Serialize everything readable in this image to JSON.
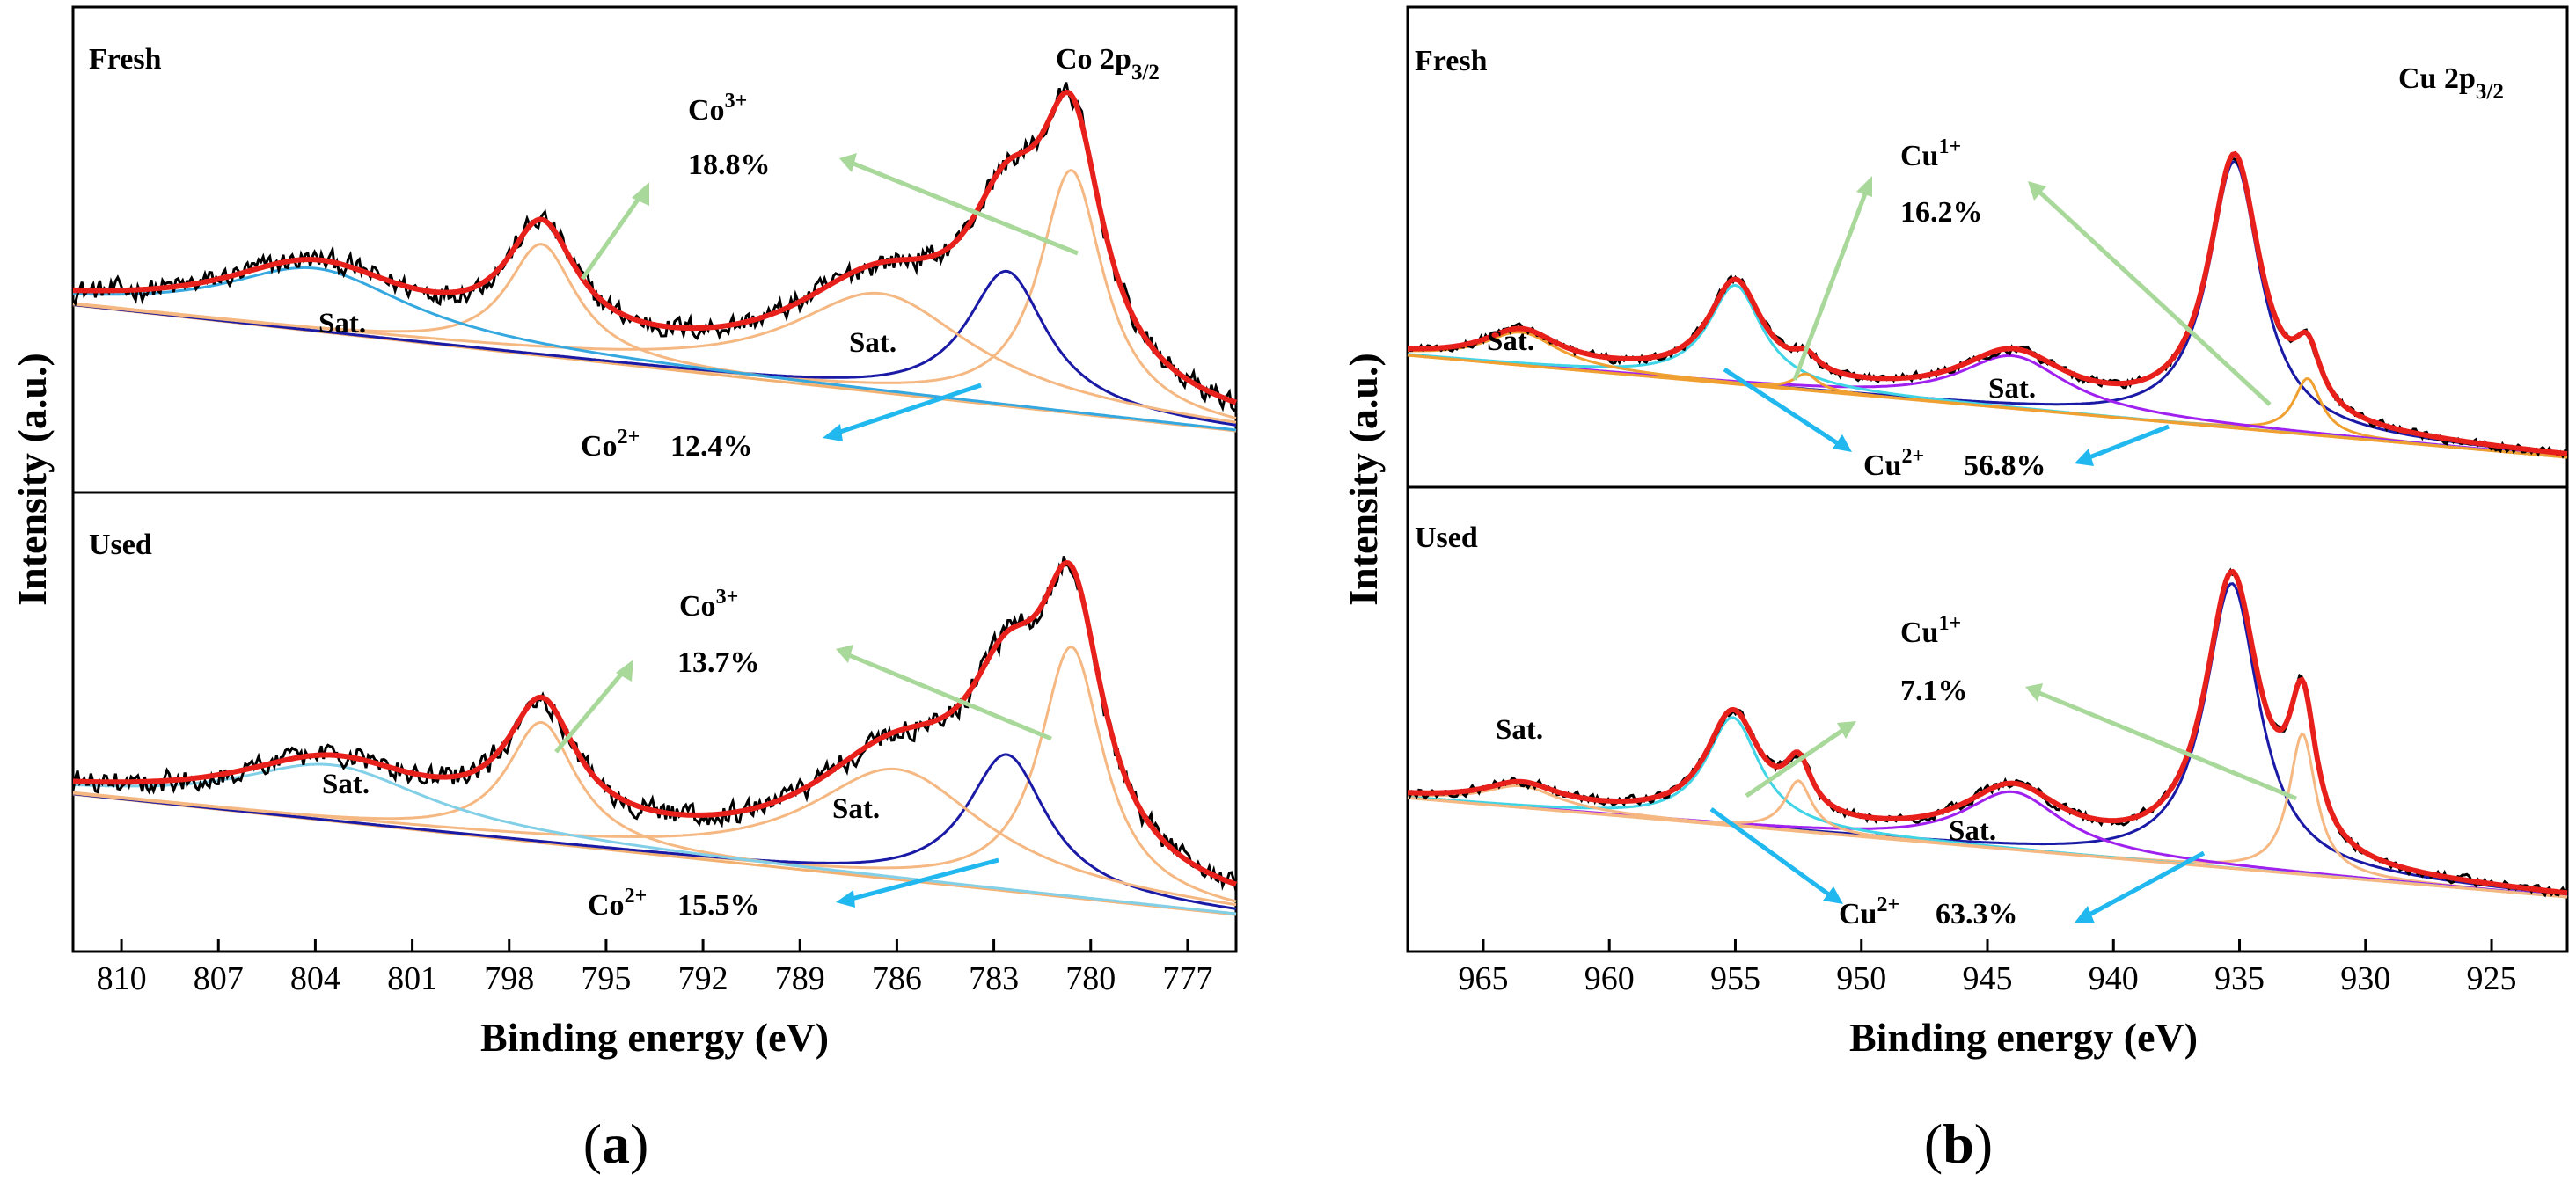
{
  "chart_data": [
    {
      "id": "a",
      "type": "line",
      "subfigure_label": "a",
      "xlabel": "Binding energy (eV)",
      "ylabel": "Intensity (a.u.)",
      "xlim": [
        811.5,
        775.5
      ],
      "xticks": [
        810,
        807,
        804,
        801,
        798,
        795,
        792,
        789,
        786,
        783,
        780,
        777
      ],
      "region": "Co 2p3/2",
      "region_main": "Co 2p",
      "region_sub": "3/2",
      "panels": [
        {
          "name": "Fresh",
          "label": "Fresh",
          "baseline": {
            "start": 0.7,
            "end": 0.0
          },
          "noise": 0.045,
          "components": [
            {
              "name": "Co3+",
              "center": 780.6,
              "width": 1.2,
              "height": 1.35,
              "color": "#f5b882"
            },
            {
              "name": "Co2+",
              "center": 782.6,
              "width": 1.5,
              "height": 0.75,
              "color": "#1a1aa6"
            },
            {
              "name": "Sat.",
              "center": 786.5,
              "width": 3.4,
              "height": 0.55,
              "color": "#f5b882"
            },
            {
              "name": "Co3+",
              "center": 797.0,
              "width": 1.3,
              "height": 0.62,
              "color": "#f5b882"
            },
            {
              "name": "Sat.",
              "center": 804.0,
              "width": 3.5,
              "height": 0.35,
              "color": "#35a8e0"
            }
          ],
          "annotations": [
            {
              "label": "Co",
              "sup": "3+",
              "value": "18.8%",
              "arrow_color": "#a8d89a"
            },
            {
              "label": "Co",
              "sup": "2+",
              "value": "12.4%",
              "arrow_color": "#20b8ef"
            }
          ],
          "sat_labels": [
            "Sat.",
            "Sat."
          ]
        },
        {
          "name": "Used",
          "label": "Used",
          "baseline": {
            "start": 0.6,
            "end": 0.0
          },
          "noise": 0.045,
          "components": [
            {
              "name": "Co3+",
              "center": 780.6,
              "width": 1.2,
              "height": 1.25,
              "color": "#f5b882"
            },
            {
              "name": "Co2+",
              "center": 782.6,
              "width": 1.5,
              "height": 0.68,
              "color": "#1a1aa6"
            },
            {
              "name": "Sat.",
              "center": 786.0,
              "width": 3.3,
              "height": 0.55,
              "color": "#f5b882"
            },
            {
              "name": "Co3+",
              "center": 797.0,
              "width": 1.3,
              "height": 0.6,
              "color": "#f5b882"
            },
            {
              "name": "Sat.",
              "center": 803.5,
              "width": 3.6,
              "height": 0.28,
              "color": "#82cfe8"
            }
          ],
          "annotations": [
            {
              "label": "Co",
              "sup": "3+",
              "value": "13.7%",
              "arrow_color": "#a8d89a"
            },
            {
              "label": "Co",
              "sup": "2+",
              "value": "15.5%",
              "arrow_color": "#20b8ef"
            }
          ],
          "sat_labels": [
            "Sat.",
            "Sat."
          ]
        }
      ]
    },
    {
      "id": "b",
      "type": "line",
      "subfigure_label": "b",
      "xlabel": "Binding energy (eV)",
      "ylabel": "Intensity (a.u.)",
      "xlim": [
        968,
        922
      ],
      "xticks": [
        965,
        960,
        955,
        950,
        945,
        940,
        935,
        930,
        925
      ],
      "region": "Cu 2p3/2",
      "region_main": "Cu 2p",
      "region_sub": "3/2",
      "panels": [
        {
          "name": "Fresh",
          "label": "Fresh",
          "baseline": {
            "start": 0.62,
            "end": 0.0
          },
          "noise": 0.02,
          "components": [
            {
              "name": "Cu2+",
              "center": 935.2,
              "width": 1.25,
              "height": 1.62,
              "color": "#1a1aa6"
            },
            {
              "name": "Cu1+",
              "center": 932.3,
              "width": 0.65,
              "height": 0.34,
              "color": "#f0a030"
            },
            {
              "name": "Sat.",
              "center": 944.0,
              "width": 2.6,
              "height": 0.32,
              "color": "#a020f0"
            },
            {
              "name": "Cu2+",
              "center": 955.0,
              "width": 1.3,
              "height": 0.6,
              "color": "#3fd4e6"
            },
            {
              "name": "Cu1+",
              "center": 952.2,
              "width": 0.6,
              "height": 0.1,
              "color": "#f0a030"
            },
            {
              "name": "Sat.",
              "center": 963.5,
              "width": 1.8,
              "height": 0.2,
              "color": "#f0a030"
            }
          ],
          "annotations": [
            {
              "label": "Cu",
              "sup": "1+",
              "value": "16.2%",
              "arrow_color": "#a8d89a"
            },
            {
              "label": "Cu",
              "sup": "2+",
              "value": "56.8%",
              "arrow_color": "#20b8ef"
            }
          ],
          "sat_labels": [
            "Sat.",
            "Sat."
          ]
        },
        {
          "name": "Used",
          "label": "Used",
          "baseline": {
            "start": 0.55,
            "end": 0.0
          },
          "noise": 0.02,
          "components": [
            {
              "name": "Cu2+",
              "center": 935.3,
              "width": 1.3,
              "height": 1.58,
              "color": "#1a1aa6"
            },
            {
              "name": "Cu1+",
              "center": 932.5,
              "width": 0.65,
              "height": 0.78,
              "color": "#f5b882"
            },
            {
              "name": "Sat.",
              "center": 944.0,
              "width": 2.4,
              "height": 0.32,
              "color": "#a020f0"
            },
            {
              "name": "Cu2+",
              "center": 955.1,
              "width": 1.3,
              "height": 0.6,
              "color": "#3fd4e6"
            },
            {
              "name": "Cu1+",
              "center": 952.5,
              "width": 0.65,
              "height": 0.28,
              "color": "#f5b882"
            },
            {
              "name": "Sat.",
              "center": 963.5,
              "width": 1.8,
              "height": 0.12,
              "color": "#f5b882"
            }
          ],
          "annotations": [
            {
              "label": "Cu",
              "sup": "1+",
              "value": "7.1%",
              "arrow_color": "#a8d89a"
            },
            {
              "label": "Cu",
              "sup": "2+",
              "value": "63.3%",
              "arrow_color": "#20b8ef"
            }
          ],
          "sat_labels": [
            "Sat.",
            "Sat."
          ]
        }
      ]
    }
  ],
  "colors": {
    "raw": "#000000",
    "fit": "#e8201c",
    "background": "#f2b070",
    "arrow_green": "#a8d89a",
    "arrow_cyan": "#20b8ef"
  }
}
